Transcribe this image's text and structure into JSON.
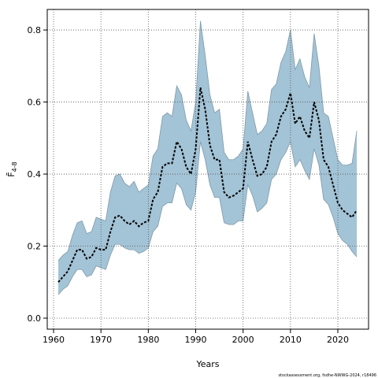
{
  "chart_data": {
    "type": "line",
    "xlabel": "Years",
    "ylabel": "F̄",
    "ylabel_sub": "4-8",
    "footnote": "stockassessment.org, fsdhe-NWWG-2024, r18496",
    "x": [
      1961,
      1962,
      1963,
      1964,
      1965,
      1966,
      1967,
      1968,
      1969,
      1970,
      1971,
      1972,
      1973,
      1974,
      1975,
      1976,
      1977,
      1978,
      1979,
      1980,
      1981,
      1982,
      1983,
      1984,
      1985,
      1986,
      1987,
      1988,
      1989,
      1990,
      1991,
      1992,
      1993,
      1994,
      1995,
      1996,
      1997,
      1998,
      1999,
      2000,
      2001,
      2002,
      2003,
      2004,
      2005,
      2006,
      2007,
      2008,
      2009,
      2010,
      2011,
      2012,
      2013,
      2014,
      2015,
      2016,
      2017,
      2018,
      2019,
      2020,
      2021,
      2022,
      2023,
      2024
    ],
    "values": [
      0.1,
      0.115,
      0.13,
      0.16,
      0.19,
      0.19,
      0.165,
      0.17,
      0.195,
      0.19,
      0.19,
      0.24,
      0.28,
      0.285,
      0.27,
      0.26,
      0.27,
      0.255,
      0.265,
      0.27,
      0.33,
      0.35,
      0.42,
      0.43,
      0.43,
      0.49,
      0.47,
      0.42,
      0.4,
      0.47,
      0.64,
      0.58,
      0.48,
      0.44,
      0.44,
      0.35,
      0.335,
      0.34,
      0.35,
      0.36,
      0.49,
      0.44,
      0.395,
      0.4,
      0.42,
      0.49,
      0.51,
      0.56,
      0.58,
      0.625,
      0.54,
      0.56,
      0.52,
      0.5,
      0.6,
      0.55,
      0.44,
      0.42,
      0.37,
      0.32,
      0.3,
      0.29,
      0.28,
      0.3
    ],
    "upper": [
      0.16,
      0.175,
      0.185,
      0.23,
      0.265,
      0.27,
      0.235,
      0.24,
      0.28,
      0.275,
      0.27,
      0.35,
      0.395,
      0.4,
      0.375,
      0.365,
      0.38,
      0.35,
      0.36,
      0.37,
      0.45,
      0.47,
      0.56,
      0.57,
      0.56,
      0.645,
      0.62,
      0.55,
      0.52,
      0.6,
      0.825,
      0.73,
      0.62,
      0.57,
      0.58,
      0.46,
      0.44,
      0.44,
      0.45,
      0.47,
      0.63,
      0.57,
      0.51,
      0.52,
      0.54,
      0.635,
      0.65,
      0.71,
      0.74,
      0.8,
      0.69,
      0.72,
      0.67,
      0.64,
      0.79,
      0.7,
      0.57,
      0.56,
      0.5,
      0.44,
      0.425,
      0.425,
      0.43,
      0.52
    ],
    "lower": [
      0.065,
      0.08,
      0.09,
      0.115,
      0.135,
      0.135,
      0.115,
      0.12,
      0.145,
      0.14,
      0.135,
      0.175,
      0.205,
      0.205,
      0.195,
      0.19,
      0.19,
      0.18,
      0.185,
      0.195,
      0.24,
      0.255,
      0.31,
      0.32,
      0.32,
      0.375,
      0.36,
      0.315,
      0.3,
      0.35,
      0.49,
      0.44,
      0.37,
      0.335,
      0.335,
      0.265,
      0.26,
      0.26,
      0.27,
      0.27,
      0.37,
      0.34,
      0.295,
      0.305,
      0.32,
      0.385,
      0.4,
      0.44,
      0.46,
      0.49,
      0.42,
      0.44,
      0.41,
      0.385,
      0.47,
      0.425,
      0.33,
      0.315,
      0.28,
      0.235,
      0.215,
      0.205,
      0.185,
      0.17
    ],
    "color": "#000000",
    "band_color": "#a3c3d6",
    "xlim": [
      1958.67,
      2026.48
    ],
    "ylim": [
      -0.0306,
      0.857
    ],
    "xticks": [
      1960,
      1970,
      1980,
      1990,
      2000,
      2010,
      2020
    ],
    "yticks": [
      {
        "value": 0,
        "label": "0.0"
      },
      0.2,
      0.4,
      0.6,
      0.8
    ],
    "grid": true
  }
}
